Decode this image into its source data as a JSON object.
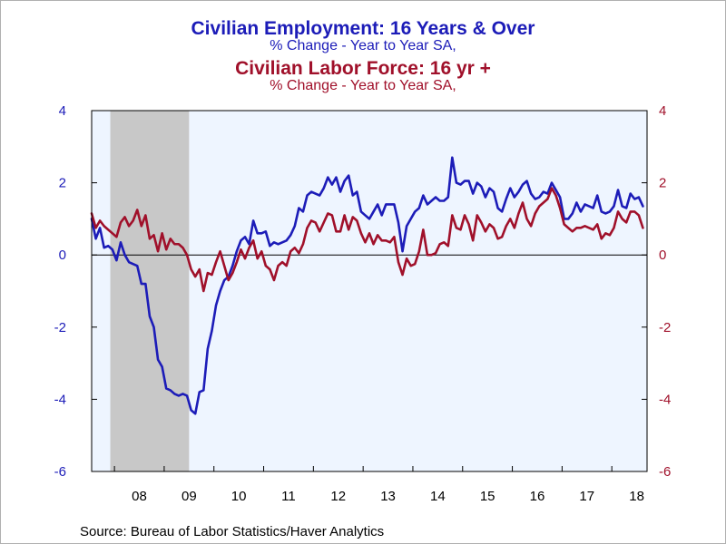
{
  "titles": {
    "line1": "Civilian Employment: 16 Years & Over",
    "line2": "% Change - Year to Year    SA,",
    "line3": "Civilian Labor Force: 16 yr +",
    "line4": "% Change - Year to Year    SA,"
  },
  "source": "Source:  Bureau of Labor Statistics/Haver Analytics",
  "colors": {
    "employment": "#1c1cb8",
    "labor_force": "#a0102a",
    "plot_background": "#eef5ff",
    "recession": "#c8c8c8"
  },
  "chart_data": {
    "type": "line",
    "x_axis": {
      "start": "2007-07",
      "end": "2018-06",
      "ticks": [
        {
          "label": "08",
          "year": 2008
        },
        {
          "label": "09",
          "year": 2009
        },
        {
          "label": "10",
          "year": 2010
        },
        {
          "label": "11",
          "year": 2011
        },
        {
          "label": "12",
          "year": 2012
        },
        {
          "label": "13",
          "year": 2013
        },
        {
          "label": "14",
          "year": 2014
        },
        {
          "label": "15",
          "year": 2015
        },
        {
          "label": "16",
          "year": 2016
        },
        {
          "label": "17",
          "year": 2017
        },
        {
          "label": "18",
          "year": 2018
        }
      ]
    },
    "y_left": {
      "min": -6,
      "max": 4,
      "ticks": [
        "4",
        "2",
        "0",
        "-2",
        "-4",
        "-6"
      ]
    },
    "y_right": {
      "min": -6,
      "max": 4,
      "ticks": [
        "4",
        "2",
        "0",
        "-2",
        "-4",
        "-6"
      ]
    },
    "recession": {
      "start": "2007-12",
      "end": "2009-06"
    },
    "zero_line": true,
    "series": [
      {
        "key": "employment",
        "axis": "left",
        "points": [
          [
            "2007-07",
            1.0
          ],
          [
            "2007-08",
            0.45
          ],
          [
            "2007-09",
            0.75
          ],
          [
            "2007-10",
            0.2
          ],
          [
            "2007-11",
            0.25
          ],
          [
            "2007-12",
            0.15
          ],
          [
            "2008-01",
            -0.15
          ],
          [
            "2008-02",
            0.35
          ],
          [
            "2008-03",
            0.0
          ],
          [
            "2008-04",
            -0.2
          ],
          [
            "2008-05",
            -0.25
          ],
          [
            "2008-06",
            -0.3
          ],
          [
            "2008-07",
            -0.8
          ],
          [
            "2008-08",
            -0.8
          ],
          [
            "2008-09",
            -1.7
          ],
          [
            "2008-10",
            -2.0
          ],
          [
            "2008-11",
            -2.9
          ],
          [
            "2008-12",
            -3.1
          ],
          [
            "2009-01",
            -3.7
          ],
          [
            "2009-02",
            -3.75
          ],
          [
            "2009-03",
            -3.85
          ],
          [
            "2009-04",
            -3.9
          ],
          [
            "2009-05",
            -3.85
          ],
          [
            "2009-06",
            -3.9
          ],
          [
            "2009-07",
            -4.3
          ],
          [
            "2009-08",
            -4.4
          ],
          [
            "2009-09",
            -3.8
          ],
          [
            "2009-10",
            -3.75
          ],
          [
            "2009-11",
            -2.6
          ],
          [
            "2009-12",
            -2.1
          ],
          [
            "2010-01",
            -1.4
          ],
          [
            "2010-02",
            -1.0
          ],
          [
            "2010-03",
            -0.7
          ],
          [
            "2010-04",
            -0.6
          ],
          [
            "2010-05",
            -0.3
          ],
          [
            "2010-06",
            0.1
          ],
          [
            "2010-07",
            0.4
          ],
          [
            "2010-08",
            0.5
          ],
          [
            "2010-09",
            0.3
          ],
          [
            "2010-10",
            0.95
          ],
          [
            "2010-11",
            0.6
          ],
          [
            "2010-12",
            0.6
          ],
          [
            "2011-01",
            0.65
          ],
          [
            "2011-02",
            0.25
          ],
          [
            "2011-03",
            0.35
          ],
          [
            "2011-04",
            0.3
          ],
          [
            "2011-05",
            0.35
          ],
          [
            "2011-06",
            0.4
          ],
          [
            "2011-07",
            0.55
          ],
          [
            "2011-08",
            0.8
          ],
          [
            "2011-09",
            1.3
          ],
          [
            "2011-10",
            1.2
          ],
          [
            "2011-11",
            1.65
          ],
          [
            "2011-12",
            1.75
          ],
          [
            "2012-01",
            1.7
          ],
          [
            "2012-02",
            1.65
          ],
          [
            "2012-03",
            1.85
          ],
          [
            "2012-04",
            2.15
          ],
          [
            "2012-05",
            1.95
          ],
          [
            "2012-06",
            2.15
          ],
          [
            "2012-07",
            1.75
          ],
          [
            "2012-08",
            2.05
          ],
          [
            "2012-09",
            2.2
          ],
          [
            "2012-10",
            1.65
          ],
          [
            "2012-11",
            1.75
          ],
          [
            "2012-12",
            1.2
          ],
          [
            "2013-01",
            1.1
          ],
          [
            "2013-02",
            1.0
          ],
          [
            "2013-03",
            1.2
          ],
          [
            "2013-04",
            1.4
          ],
          [
            "2013-05",
            1.1
          ],
          [
            "2013-06",
            1.4
          ],
          [
            "2013-07",
            1.4
          ],
          [
            "2013-08",
            1.4
          ],
          [
            "2013-09",
            0.9
          ],
          [
            "2013-10",
            0.1
          ],
          [
            "2013-11",
            0.8
          ],
          [
            "2013-12",
            1.0
          ],
          [
            "2014-01",
            1.2
          ],
          [
            "2014-02",
            1.3
          ],
          [
            "2014-03",
            1.65
          ],
          [
            "2014-04",
            1.4
          ],
          [
            "2014-05",
            1.5
          ],
          [
            "2014-06",
            1.6
          ],
          [
            "2014-07",
            1.5
          ],
          [
            "2014-08",
            1.5
          ],
          [
            "2014-09",
            1.6
          ],
          [
            "2014-10",
            2.7
          ],
          [
            "2014-11",
            2.0
          ],
          [
            "2014-12",
            1.95
          ],
          [
            "2015-01",
            2.05
          ],
          [
            "2015-02",
            2.05
          ],
          [
            "2015-03",
            1.7
          ],
          [
            "2015-04",
            2.0
          ],
          [
            "2015-05",
            1.9
          ],
          [
            "2015-06",
            1.6
          ],
          [
            "2015-07",
            1.85
          ],
          [
            "2015-08",
            1.75
          ],
          [
            "2015-09",
            1.3
          ],
          [
            "2015-10",
            1.2
          ],
          [
            "2015-11",
            1.55
          ],
          [
            "2015-12",
            1.85
          ],
          [
            "2016-01",
            1.6
          ],
          [
            "2016-02",
            1.75
          ],
          [
            "2016-03",
            1.95
          ],
          [
            "2016-04",
            2.05
          ],
          [
            "2016-05",
            1.7
          ],
          [
            "2016-06",
            1.55
          ],
          [
            "2016-07",
            1.6
          ],
          [
            "2016-08",
            1.75
          ],
          [
            "2016-09",
            1.7
          ],
          [
            "2016-10",
            2.0
          ],
          [
            "2016-11",
            1.8
          ],
          [
            "2016-12",
            1.6
          ],
          [
            "2017-01",
            1.0
          ],
          [
            "2017-02",
            1.0
          ],
          [
            "2017-03",
            1.15
          ],
          [
            "2017-04",
            1.45
          ],
          [
            "2017-05",
            1.2
          ],
          [
            "2017-06",
            1.4
          ],
          [
            "2017-07",
            1.35
          ],
          [
            "2017-08",
            1.3
          ],
          [
            "2017-09",
            1.65
          ],
          [
            "2017-10",
            1.2
          ],
          [
            "2017-11",
            1.15
          ],
          [
            "2017-12",
            1.2
          ],
          [
            "2018-01",
            1.35
          ],
          [
            "2018-02",
            1.8
          ],
          [
            "2018-03",
            1.35
          ],
          [
            "2018-04",
            1.3
          ],
          [
            "2018-05",
            1.7
          ],
          [
            "2018-06",
            1.55
          ],
          [
            "2018-07",
            1.6
          ],
          [
            "2018-08",
            1.35
          ]
        ]
      },
      {
        "key": "labor_force",
        "axis": "right",
        "points": [
          [
            "2007-07",
            1.15
          ],
          [
            "2007-08",
            0.75
          ],
          [
            "2007-09",
            0.95
          ],
          [
            "2007-10",
            0.8
          ],
          [
            "2007-11",
            0.7
          ],
          [
            "2007-12",
            0.6
          ],
          [
            "2008-01",
            0.5
          ],
          [
            "2008-02",
            0.9
          ],
          [
            "2008-03",
            1.05
          ],
          [
            "2008-04",
            0.8
          ],
          [
            "2008-05",
            0.95
          ],
          [
            "2008-06",
            1.25
          ],
          [
            "2008-07",
            0.8
          ],
          [
            "2008-08",
            1.1
          ],
          [
            "2008-09",
            0.45
          ],
          [
            "2008-10",
            0.55
          ],
          [
            "2008-11",
            0.1
          ],
          [
            "2008-12",
            0.6
          ],
          [
            "2009-01",
            0.15
          ],
          [
            "2009-02",
            0.45
          ],
          [
            "2009-03",
            0.3
          ],
          [
            "2009-04",
            0.3
          ],
          [
            "2009-05",
            0.2
          ],
          [
            "2009-06",
            0.0
          ],
          [
            "2009-07",
            -0.4
          ],
          [
            "2009-08",
            -0.6
          ],
          [
            "2009-09",
            -0.4
          ],
          [
            "2009-10",
            -1.0
          ],
          [
            "2009-11",
            -0.5
          ],
          [
            "2009-12",
            -0.55
          ],
          [
            "2010-01",
            -0.2
          ],
          [
            "2010-02",
            0.1
          ],
          [
            "2010-03",
            -0.3
          ],
          [
            "2010-04",
            -0.7
          ],
          [
            "2010-05",
            -0.5
          ],
          [
            "2010-06",
            -0.2
          ],
          [
            "2010-07",
            0.15
          ],
          [
            "2010-08",
            -0.1
          ],
          [
            "2010-09",
            0.2
          ],
          [
            "2010-10",
            0.4
          ],
          [
            "2010-11",
            -0.1
          ],
          [
            "2010-12",
            0.1
          ],
          [
            "2011-01",
            -0.3
          ],
          [
            "2011-02",
            -0.4
          ],
          [
            "2011-03",
            -0.7
          ],
          [
            "2011-04",
            -0.3
          ],
          [
            "2011-05",
            -0.2
          ],
          [
            "2011-06",
            -0.3
          ],
          [
            "2011-07",
            0.1
          ],
          [
            "2011-08",
            0.2
          ],
          [
            "2011-09",
            0.05
          ],
          [
            "2011-10",
            0.3
          ],
          [
            "2011-11",
            0.75
          ],
          [
            "2011-12",
            0.95
          ],
          [
            "2012-01",
            0.9
          ],
          [
            "2012-02",
            0.65
          ],
          [
            "2012-03",
            0.9
          ],
          [
            "2012-04",
            1.15
          ],
          [
            "2012-05",
            1.1
          ],
          [
            "2012-06",
            0.65
          ],
          [
            "2012-07",
            0.65
          ],
          [
            "2012-08",
            1.1
          ],
          [
            "2012-09",
            0.7
          ],
          [
            "2012-10",
            1.05
          ],
          [
            "2012-11",
            0.95
          ],
          [
            "2012-12",
            0.6
          ],
          [
            "2013-01",
            0.35
          ],
          [
            "2013-02",
            0.6
          ],
          [
            "2013-03",
            0.3
          ],
          [
            "2013-04",
            0.55
          ],
          [
            "2013-05",
            0.4
          ],
          [
            "2013-06",
            0.4
          ],
          [
            "2013-07",
            0.35
          ],
          [
            "2013-08",
            0.5
          ],
          [
            "2013-09",
            -0.2
          ],
          [
            "2013-10",
            -0.55
          ],
          [
            "2013-11",
            -0.1
          ],
          [
            "2013-12",
            -0.3
          ],
          [
            "2014-01",
            -0.25
          ],
          [
            "2014-02",
            0.1
          ],
          [
            "2014-03",
            0.7
          ],
          [
            "2014-04",
            0.0
          ],
          [
            "2014-05",
            0.0
          ],
          [
            "2014-06",
            0.05
          ],
          [
            "2014-07",
            0.3
          ],
          [
            "2014-08",
            0.35
          ],
          [
            "2014-09",
            0.25
          ],
          [
            "2014-10",
            1.1
          ],
          [
            "2014-11",
            0.75
          ],
          [
            "2014-12",
            0.7
          ],
          [
            "2015-01",
            1.1
          ],
          [
            "2015-02",
            0.85
          ],
          [
            "2015-03",
            0.4
          ],
          [
            "2015-04",
            1.1
          ],
          [
            "2015-05",
            0.9
          ],
          [
            "2015-06",
            0.65
          ],
          [
            "2015-07",
            0.85
          ],
          [
            "2015-08",
            0.75
          ],
          [
            "2015-09",
            0.45
          ],
          [
            "2015-10",
            0.5
          ],
          [
            "2015-11",
            0.8
          ],
          [
            "2015-12",
            1.0
          ],
          [
            "2016-01",
            0.75
          ],
          [
            "2016-02",
            1.15
          ],
          [
            "2016-03",
            1.45
          ],
          [
            "2016-04",
            1.0
          ],
          [
            "2016-05",
            0.8
          ],
          [
            "2016-06",
            1.15
          ],
          [
            "2016-07",
            1.35
          ],
          [
            "2016-08",
            1.45
          ],
          [
            "2016-09",
            1.55
          ],
          [
            "2016-10",
            1.85
          ],
          [
            "2016-11",
            1.65
          ],
          [
            "2016-12",
            1.3
          ],
          [
            "2017-01",
            0.85
          ],
          [
            "2017-02",
            0.75
          ],
          [
            "2017-03",
            0.65
          ],
          [
            "2017-04",
            0.75
          ],
          [
            "2017-05",
            0.75
          ],
          [
            "2017-06",
            0.8
          ],
          [
            "2017-07",
            0.75
          ],
          [
            "2017-08",
            0.7
          ],
          [
            "2017-09",
            0.85
          ],
          [
            "2017-10",
            0.45
          ],
          [
            "2017-11",
            0.6
          ],
          [
            "2017-12",
            0.55
          ],
          [
            "2018-01",
            0.75
          ],
          [
            "2018-02",
            1.2
          ],
          [
            "2018-03",
            1.0
          ],
          [
            "2018-04",
            0.9
          ],
          [
            "2018-05",
            1.2
          ],
          [
            "2018-06",
            1.2
          ],
          [
            "2018-07",
            1.1
          ],
          [
            "2018-08",
            0.75
          ]
        ]
      }
    ]
  }
}
